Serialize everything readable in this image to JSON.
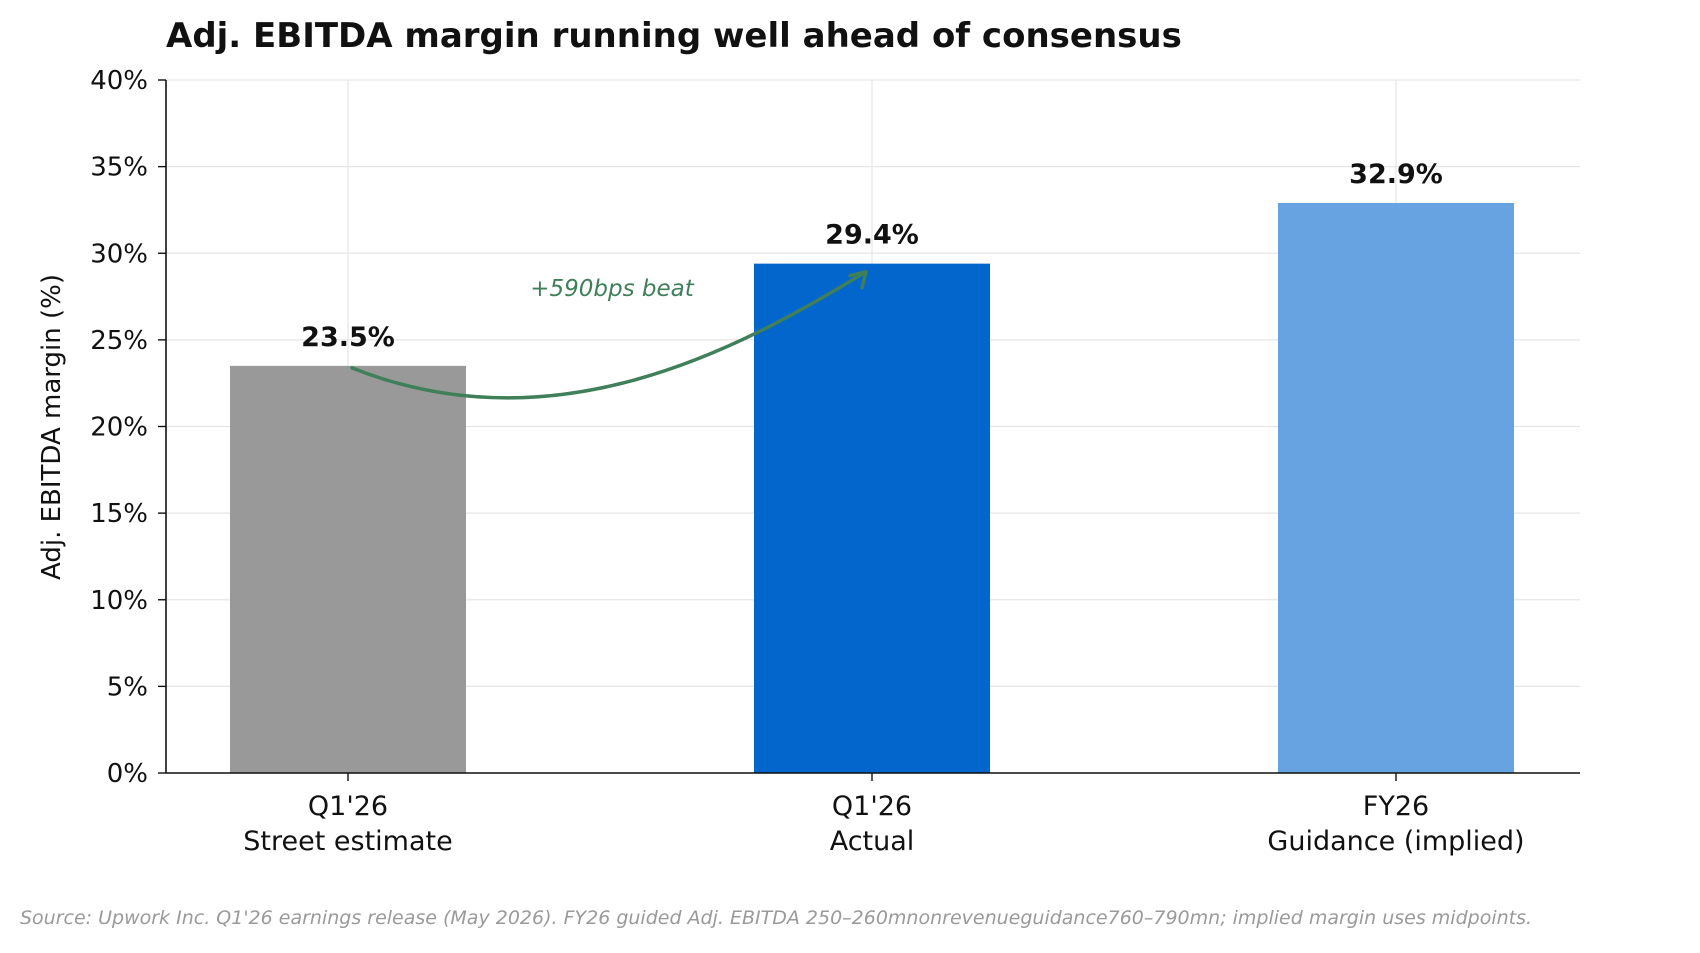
{
  "chart_data": {
    "type": "bar",
    "title": "Adj. EBITDA margin running well ahead of consensus",
    "ylabel": "Adj. EBITDA margin (%)",
    "xlabel": "",
    "ylim": [
      0,
      40
    ],
    "yticks": [
      0,
      5,
      10,
      15,
      20,
      25,
      30,
      35,
      40
    ],
    "y_tick_suffix": "%",
    "grid": true,
    "categories": [
      {
        "line1": "Q1'26",
        "line2": "Street estimate"
      },
      {
        "line1": "Q1'26",
        "line2": "Actual"
      },
      {
        "line1": "FY26",
        "line2": "Guidance (implied)"
      }
    ],
    "values": [
      23.5,
      29.4,
      32.9
    ],
    "value_labels": [
      "23.5%",
      "29.4%",
      "32.9%"
    ],
    "bar_colors": [
      "#999999",
      "#0366cc",
      "#66a3e0"
    ],
    "annotation": {
      "text": "+590bps beat",
      "color": "#3f7f5a",
      "from_category": 0,
      "to_category": 1
    },
    "source": "Source: Upwork Inc. Q1'26 earnings release (May 2026). FY26 guided Adj. EBITDA 250–260mnonrevenueguidance760–790mn; implied margin uses midpoints."
  }
}
